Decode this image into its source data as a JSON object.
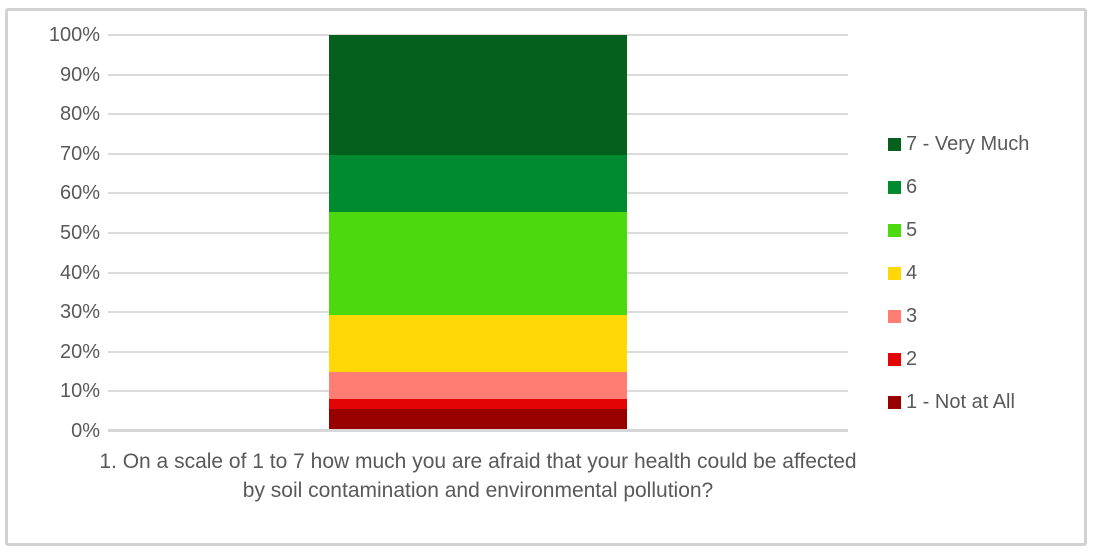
{
  "colors": {
    "text": "#595959",
    "gridline": "#DBDBDB",
    "axis_line": "#D6D6D6",
    "panel_border": "#D2D2D2",
    "background": "#FFFFFF"
  },
  "chart_data": {
    "type": "bar",
    "stacked": true,
    "orientation": "vertical",
    "unit": "%",
    "title": "",
    "xlabel": "",
    "ylabel": "",
    "ylim": [
      0,
      100
    ],
    "grid": true,
    "legend_position": "right",
    "y_ticks": [
      "0%",
      "10%",
      "20%",
      "30%",
      "40%",
      "50%",
      "60%",
      "70%",
      "80%",
      "90%",
      "100%"
    ],
    "categories": [
      "1. On a scale of 1 to 7 how much you are afraid that your health could be affected by soil contamination and environmental pollution?"
    ],
    "series": [
      {
        "name": "7 - Very Much",
        "values": [
          30.5
        ],
        "color": "#05601E"
      },
      {
        "name": "6",
        "values": [
          14.5
        ],
        "color": "#008B30"
      },
      {
        "name": "5",
        "values": [
          26
        ],
        "color": "#4CD90D"
      },
      {
        "name": "4",
        "values": [
          14.5
        ],
        "color": "#FFD805"
      },
      {
        "name": "3",
        "values": [
          7
        ],
        "color": "#FF7D72"
      },
      {
        "name": "2",
        "values": [
          2.5
        ],
        "color": "#E30505"
      },
      {
        "name": "1 - Not at All",
        "values": [
          5
        ],
        "color": "#980000"
      }
    ]
  }
}
